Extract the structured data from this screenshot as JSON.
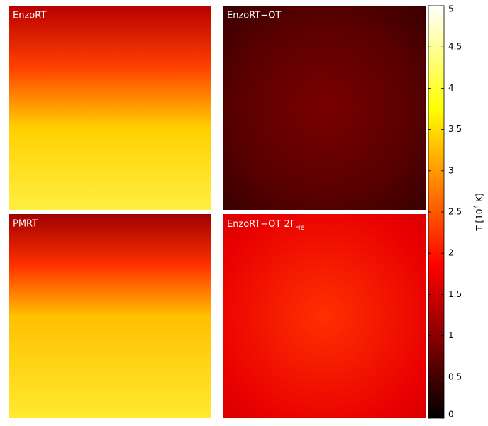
{
  "chart_data": {
    "type": "heatmap",
    "panels": [
      {
        "title": "EnzoRT"
      },
      {
        "title": "EnzoRT−OT"
      },
      {
        "title": "PMRT"
      },
      {
        "title": "EnzoRT−OT 2Γ",
        "title_sub": "He"
      }
    ],
    "colormap": "hot",
    "colorbar": {
      "label": "T [10",
      "label_sup": "4",
      "label_end": " K]",
      "clim": [
        0,
        5
      ],
      "ticks": [
        0,
        0.5,
        1,
        1.5,
        2,
        2.5,
        3,
        3.5,
        4,
        4.5,
        5
      ]
    }
  }
}
